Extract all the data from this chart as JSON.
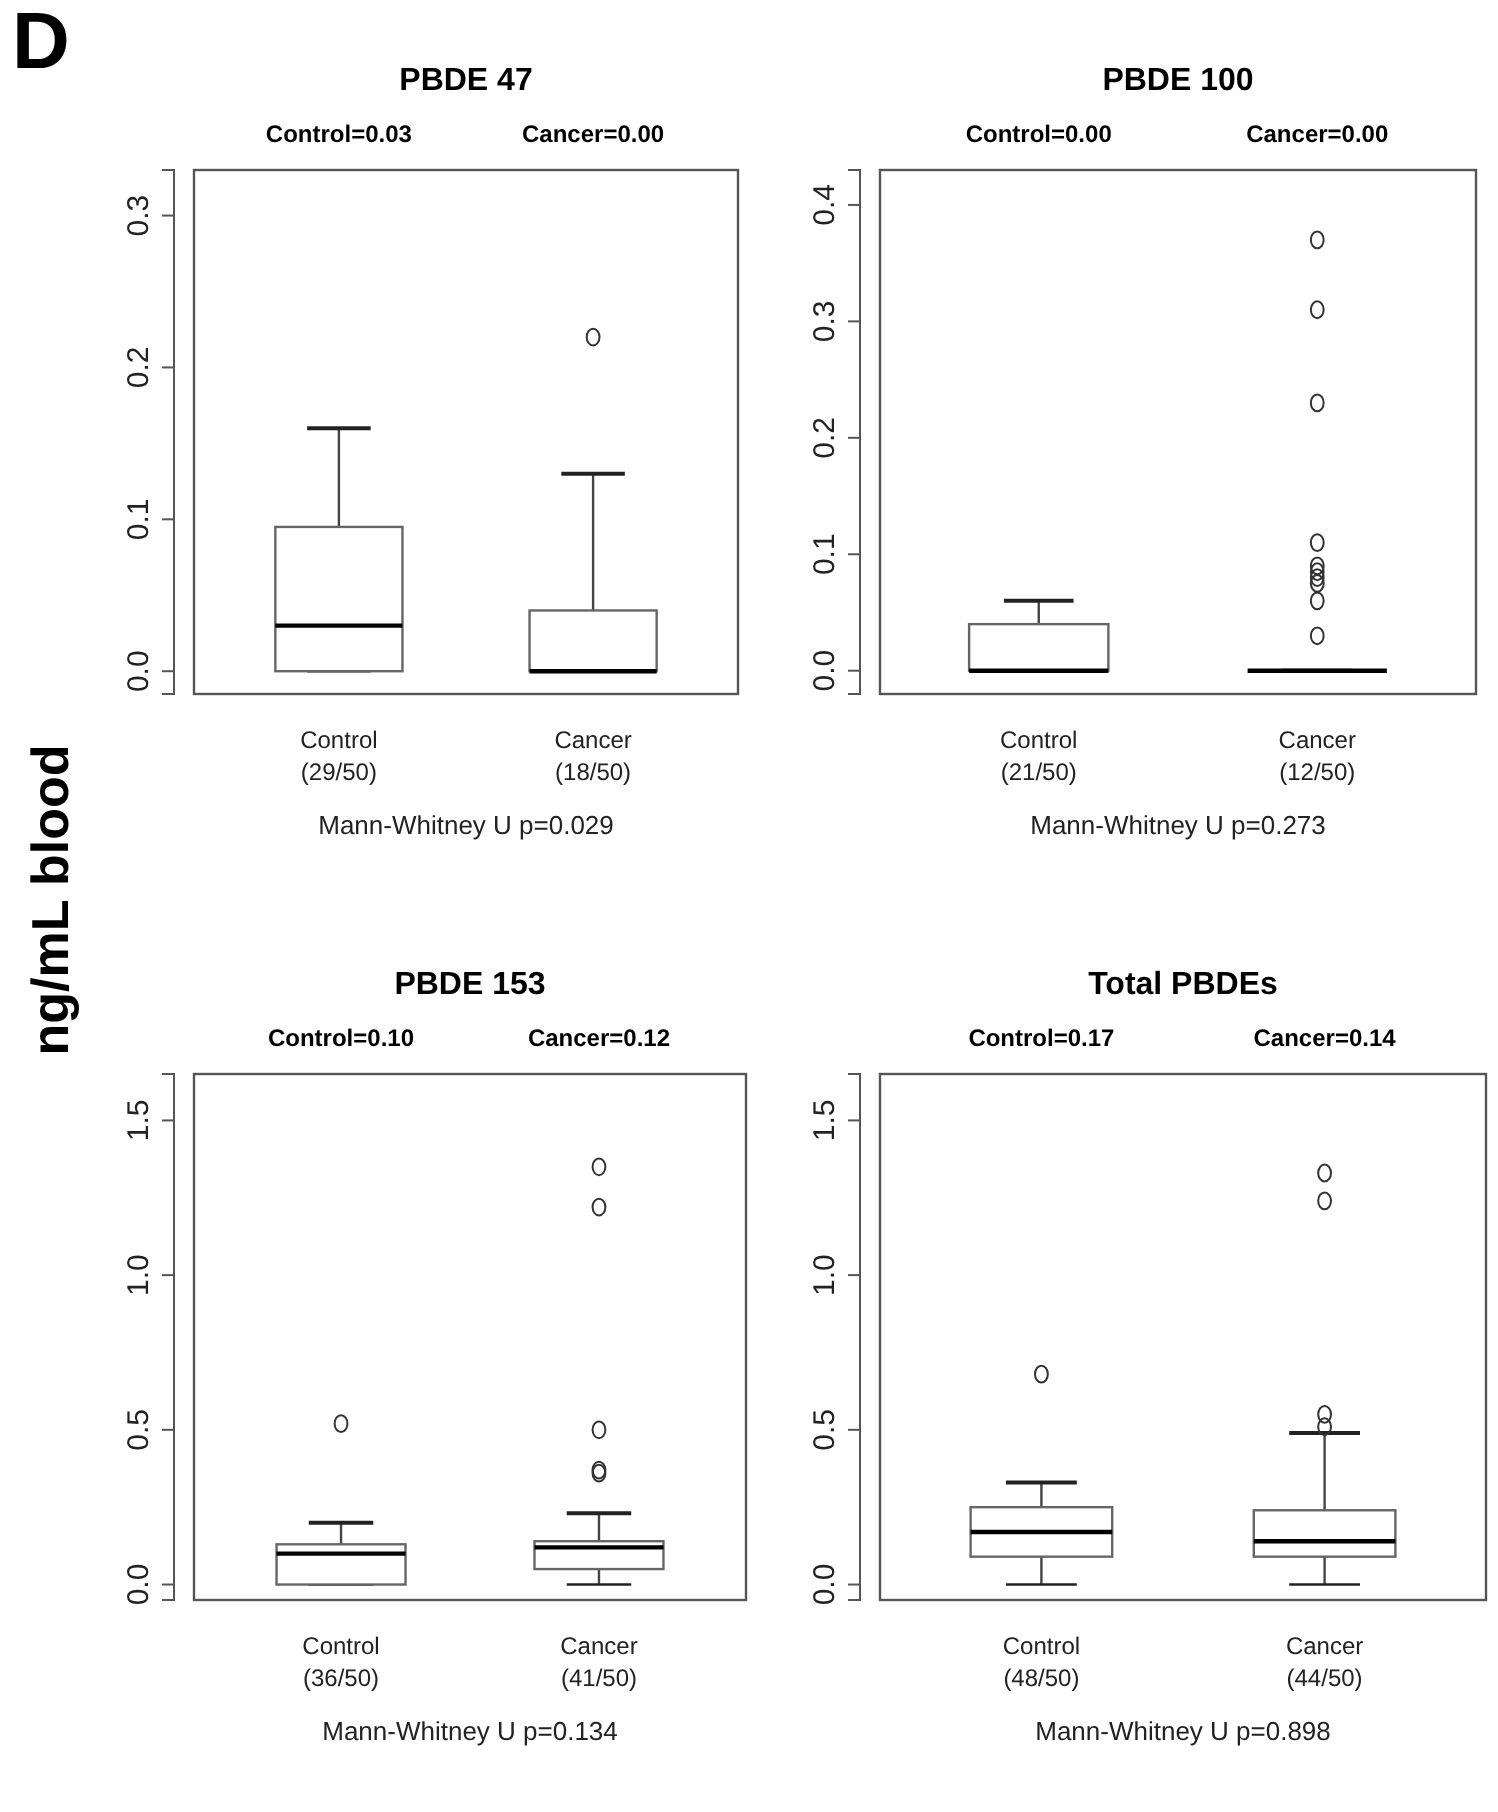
{
  "chart_data": [
    {
      "type": "box",
      "title": "PBDE 47",
      "ylabel": "ng/mL blood",
      "categories": [
        "Control\n(29/50)",
        "Cancer\n(18/50)"
      ],
      "ylim": [
        -0.015,
        0.33
      ],
      "yticks": [
        {
          "value": 0,
          "label": "0.0"
        },
        {
          "value": 0.1,
          "label": "0.1"
        },
        {
          "value": 0.2,
          "label": "0.2"
        },
        {
          "value": 0.3,
          "label": "0.3"
        }
      ],
      "boxes": [
        {
          "low": 0,
          "q1": 0,
          "median": 0.03,
          "q3": 0.095,
          "high": 0.16
        },
        {
          "low": 0,
          "q1": 0,
          "median": 0,
          "q3": 0.04,
          "high": 0.13,
          "outliers": [
            0.22
          ]
        }
      ],
      "annotations": [
        "D",
        "Control=0.03",
        "Cancer=0.00",
        "Mann-Whitney U p=0.029"
      ]
    },
    {
      "type": "box",
      "title": "PBDE 100",
      "categories": [
        "Control\n(21/50)",
        "Cancer\n(12/50)"
      ],
      "ylim": [
        -0.02,
        0.43
      ],
      "yticks": [
        {
          "value": 0,
          "label": "0.0"
        },
        {
          "value": 0.1,
          "label": "0.1"
        },
        {
          "value": 0.2,
          "label": "0.2"
        },
        {
          "value": 0.3,
          "label": "0.3"
        },
        {
          "value": 0.4,
          "label": "0.4"
        }
      ],
      "boxes": [
        {
          "low": 0,
          "q1": 0,
          "median": 0,
          "q3": 0.04,
          "high": 0.06
        },
        {
          "low": 0,
          "q1": 0,
          "median": 0,
          "q3": 0,
          "high": 0,
          "outliers": [
            0.37,
            0.31,
            0.23,
            0.11,
            0.09,
            0.085,
            0.08,
            0.075,
            0.06,
            0.03
          ]
        }
      ],
      "annotations": [
        "Control=0.00",
        "Cancer=0.00",
        "Mann-Whitney U p=0.273"
      ]
    },
    {
      "type": "box",
      "title": "PBDE 153",
      "categories": [
        "Control\n(36/50)",
        "Cancer\n(41/50)"
      ],
      "ylim": [
        -0.05,
        1.65
      ],
      "yticks": [
        {
          "value": 0,
          "label": "0.0"
        },
        {
          "value": 0.5,
          "label": "0.5"
        },
        {
          "value": 1,
          "label": "1.0"
        },
        {
          "value": 1.5,
          "label": "1.5"
        }
      ],
      "boxes": [
        {
          "low": 0,
          "q1": 0,
          "median": 0.1,
          "q3": 0.13,
          "high": 0.2,
          "outliers": [
            0.52
          ]
        },
        {
          "low": 0,
          "q1": 0.05,
          "median": 0.12,
          "q3": 0.14,
          "high": 0.23,
          "outliers": [
            1.35,
            1.22,
            0.5,
            0.37,
            0.36
          ]
        }
      ],
      "annotations": [
        "Control=0.10",
        "Cancer=0.12",
        "Mann-Whitney U p=0.134"
      ]
    },
    {
      "type": "box",
      "title": "Total PBDEs",
      "categories": [
        "Control\n(48/50)",
        "Cancer\n(44/50)"
      ],
      "ylim": [
        -0.05,
        1.65
      ],
      "yticks": [
        {
          "value": 0,
          "label": "0.0"
        },
        {
          "value": 0.5,
          "label": "0.5"
        },
        {
          "value": 1,
          "label": "1.0"
        },
        {
          "value": 1.5,
          "label": "1.5"
        }
      ],
      "boxes": [
        {
          "low": 0,
          "q1": 0.09,
          "median": 0.17,
          "q3": 0.25,
          "high": 0.33,
          "outliers": [
            0.68
          ]
        },
        {
          "low": 0,
          "q1": 0.09,
          "median": 0.14,
          "q3": 0.24,
          "high": 0.49,
          "outliers": [
            1.33,
            1.24,
            0.55,
            0.51
          ]
        }
      ],
      "annotations": [
        "Control=0.17",
        "Cancer=0.14",
        "Mann-Whitney U p=0.898"
      ]
    }
  ]
}
